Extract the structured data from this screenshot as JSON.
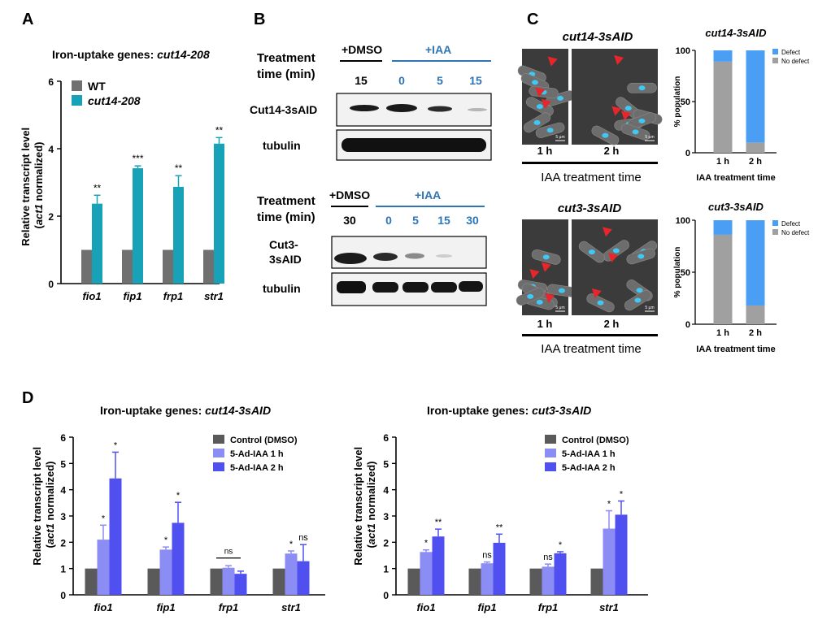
{
  "panel_labels": {
    "A": "A",
    "B": "B",
    "C": "C",
    "D": "D"
  },
  "panelA": {
    "title_prefix": "Iron-uptake genes: ",
    "title_strain": "cut14-208",
    "ylabel_line1": "Relative transcript level",
    "ylabel_italic": "act1",
    "ylabel_rest": " normalized)",
    "ylabel_open": "(",
    "legend": [
      "WT",
      "cut14-208"
    ]
  },
  "panelB": {
    "treatment_label_1": "Treatment",
    "treatment_label_2": "time (min)",
    "dmso": "+DMSO",
    "iaa": "+IAA",
    "top_times": [
      "15",
      "0",
      "5",
      "15"
    ],
    "bottom_times": [
      "30",
      "0",
      "5",
      "15",
      "30"
    ],
    "blot_top_1": "Cut14-3sAID",
    "blot_top_2": "tubulin",
    "blot_bottom_1a": "Cut3-",
    "blot_bottom_1b": "3sAID",
    "blot_bottom_2": "tubulin",
    "colors": {
      "iaa": "#2e75b6"
    }
  },
  "panelC": {
    "top_title": "cut14-3sAID",
    "bottom_title": "cut3-3sAID",
    "time_1h": "1 h",
    "time_2h": "2 h",
    "iaa_time_label": "IAA treatment time",
    "scale_bar": "5 µm",
    "bar_ylabel": "% population",
    "bar_xlabel": "IAA treatment time",
    "legend_defect": "Defect",
    "legend_nodefect": "No defect",
    "colors": {
      "defect": "#4a9ff5",
      "no_defect": "#a0a0a0",
      "nucleus": "#3fc8f4"
    }
  },
  "panelD": {
    "left_title_prefix": "Iron-uptake genes: ",
    "left_title_strain": "cut14-3sAID",
    "right_title_prefix": "Iron-uptake genes: ",
    "right_title_strain": "cut3-3sAID",
    "ylabel_line1": "Relative transcript level",
    "ylabel_italic": "act1",
    "ylabel_rest": " normalized)",
    "ylabel_open": "(",
    "legend": [
      "Control (DMSO)",
      "5-Ad-IAA 1 h",
      "5-Ad-IAA 2 h"
    ]
  },
  "chart_data": [
    {
      "id": "A",
      "type": "bar",
      "title": "Iron-uptake genes: cut14-208",
      "ylabel": "Relative transcript level (act1 normalized)",
      "categories": [
        "fio1",
        "fip1",
        "frp1",
        "str1"
      ],
      "ylim": [
        0,
        6
      ],
      "yticks": [
        0,
        2,
        4,
        6
      ],
      "series": [
        {
          "name": "WT",
          "color": "#707070",
          "values": [
            1,
            1,
            1,
            1
          ],
          "errors": [
            0,
            0,
            0,
            0
          ],
          "sig": [
            "",
            "",
            "",
            ""
          ]
        },
        {
          "name": "cut14-208",
          "color": "#17a2b8",
          "values": [
            2.37,
            3.42,
            2.87,
            4.15
          ],
          "errors": [
            0.25,
            0.07,
            0.33,
            0.18
          ],
          "sig": [
            "**",
            "***",
            "**",
            "**"
          ]
        }
      ]
    },
    {
      "id": "C-top",
      "type": "bar",
      "stacked": true,
      "title": "cut14-3sAID",
      "ylabel": "% population",
      "xlabel": "IAA treatment time",
      "categories": [
        "1 h",
        "2 h"
      ],
      "ylim": [
        0,
        100
      ],
      "yticks": [
        0,
        50,
        100
      ],
      "series": [
        {
          "name": "No defect",
          "color": "#a0a0a0",
          "values": [
            89,
            10
          ]
        },
        {
          "name": "Defect",
          "color": "#4a9ff5",
          "values": [
            11,
            90
          ]
        }
      ]
    },
    {
      "id": "C-bottom",
      "type": "bar",
      "stacked": true,
      "title": "cut3-3sAID",
      "ylabel": "% population",
      "xlabel": "IAA treatment time",
      "categories": [
        "1 h",
        "2 h"
      ],
      "ylim": [
        0,
        100
      ],
      "yticks": [
        0,
        50,
        100
      ],
      "series": [
        {
          "name": "No defect",
          "color": "#a0a0a0",
          "values": [
            86,
            18
          ]
        },
        {
          "name": "Defect",
          "color": "#4a9ff5",
          "values": [
            14,
            82
          ]
        }
      ]
    },
    {
      "id": "D-left",
      "type": "bar",
      "title": "Iron-uptake genes: cut14-3sAID",
      "ylabel": "Relative transcript level (act1 normalized)",
      "categories": [
        "fio1",
        "fip1",
        "frp1",
        "str1"
      ],
      "ylim": [
        0,
        6
      ],
      "yticks": [
        0,
        1,
        2,
        3,
        4,
        5,
        6
      ],
      "series": [
        {
          "name": "Control (DMSO)",
          "color": "#5a5a5a",
          "values": [
            1,
            1,
            1,
            1
          ],
          "errors": [
            0,
            0,
            0,
            0
          ],
          "sig": [
            "",
            "",
            "",
            ""
          ]
        },
        {
          "name": "5-Ad-IAA 1 h",
          "color": "#8c8cf5",
          "values": [
            2.1,
            1.72,
            1.03,
            1.57
          ],
          "errors": [
            0.55,
            0.1,
            0.08,
            0.1
          ],
          "sig": [
            "*",
            "*",
            "",
            "*"
          ]
        },
        {
          "name": "5-Ad-IAA 2 h",
          "color": "#5050f0",
          "values": [
            4.43,
            2.74,
            0.8,
            1.28
          ],
          "errors": [
            1.0,
            0.78,
            0.1,
            0.63
          ],
          "sig": [
            "*",
            "*",
            "",
            "ns"
          ]
        }
      ],
      "ns_bracket": {
        "category": "frp1",
        "label": "ns"
      }
    },
    {
      "id": "D-right",
      "type": "bar",
      "title": "Iron-uptake genes: cut3-3sAID",
      "ylabel": "Relative transcript level (act1 normalized)",
      "categories": [
        "fio1",
        "fip1",
        "frp1",
        "str1"
      ],
      "ylim": [
        0,
        6
      ],
      "yticks": [
        0,
        1,
        2,
        3,
        4,
        5,
        6
      ],
      "series": [
        {
          "name": "Control (DMSO)",
          "color": "#5a5a5a",
          "values": [
            1,
            1,
            1,
            1
          ],
          "errors": [
            0,
            0,
            0,
            0
          ],
          "sig": [
            "",
            "",
            "",
            ""
          ]
        },
        {
          "name": "5-Ad-IAA 1 h",
          "color": "#8c8cf5",
          "values": [
            1.63,
            1.2,
            1.07,
            2.52
          ],
          "errors": [
            0.08,
            0.05,
            0.1,
            0.68
          ],
          "sig": [
            "*",
            "ns",
            "ns",
            "*"
          ]
        },
        {
          "name": "5-Ad-IAA 2 h",
          "color": "#5050f0",
          "values": [
            2.22,
            1.98,
            1.58,
            3.05
          ],
          "errors": [
            0.28,
            0.33,
            0.06,
            0.52
          ],
          "sig": [
            "**",
            "**",
            "*",
            "*"
          ]
        }
      ]
    }
  ]
}
